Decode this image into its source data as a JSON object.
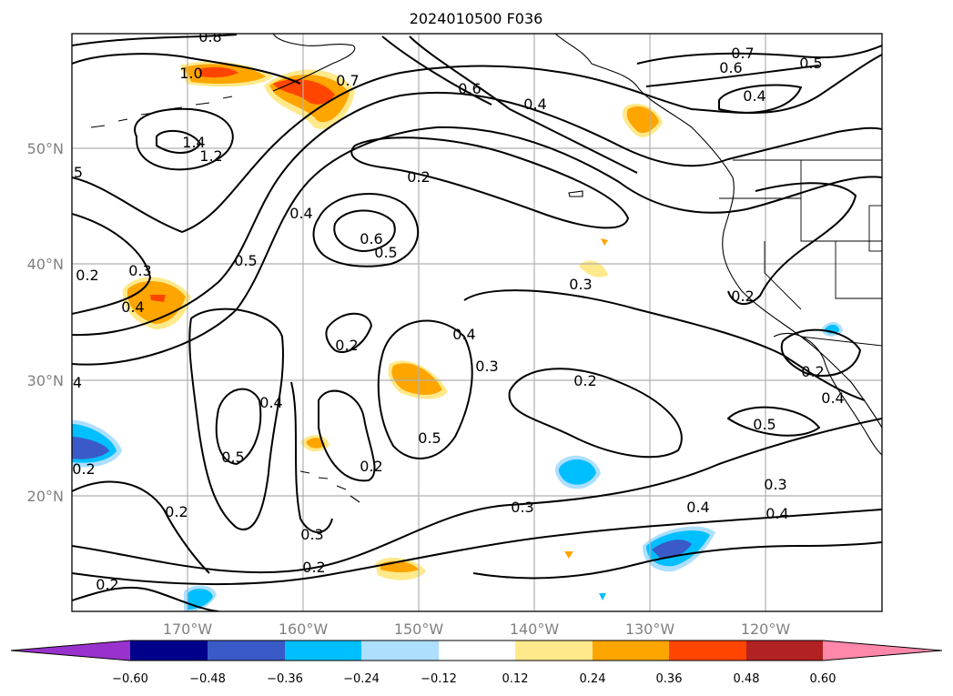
{
  "title": "2024010500 F036",
  "latitude_labels": [
    "50°N",
    "40°N",
    "30°N",
    "20°N"
  ],
  "longitude_labels": [
    "170°W",
    "160°W",
    "150°W",
    "140°W",
    "130°W",
    "120°W"
  ],
  "colorbar": {
    "tick_labels": [
      "−0.60",
      "−0.48",
      "−0.36",
      "−0.24",
      "−0.12",
      "0.12",
      "0.24",
      "0.36",
      "0.48",
      "0.60"
    ],
    "colors": [
      "#9932CC",
      "#00008B",
      "#3A5BC7",
      "#00BFFF",
      "#ADDFFF",
      "#FFFFFF",
      "#FFE98A",
      "#FFA500",
      "#FF4500",
      "#B22222",
      "#FF88AA"
    ]
  },
  "contour_labels": {
    "c08": "0.8",
    "c10": "1.0",
    "c07a": "0.7",
    "c07b": "0.7",
    "c06a": "0.6",
    "c05a": "0.5",
    "c04a": "0.4",
    "c06b": "0.6",
    "c04b": "0.4",
    "c14": "1.4",
    "c12": "1.2",
    "c05b": "5",
    "c02a": "0.2",
    "c04c": "0.4",
    "c05c": "0.5",
    "c06c": "0.6",
    "c05d": "0.5",
    "c02b": "0.2",
    "c03a": "0.3",
    "c04d": "0.4",
    "c03b": "0.3",
    "c02c": "0.2",
    "c04e": "0.4",
    "c03c": "0.3",
    "c02d": "0.2",
    "c04f": "4",
    "c04g": "0.4",
    "c05e": "0.5",
    "c02e": "0.2",
    "c02f": "0.2",
    "c05f": "0.5",
    "c02g": "0.2",
    "c03d": "0.3",
    "c03e": "0.3",
    "c04h": "0.4",
    "c02h": "0.2",
    "c02i": "0.2",
    "c02j": "0.2",
    "c02k": "0.2",
    "c04i": "0.4",
    "c05g": "0.5",
    "c03f": "0.3",
    "c04j": "0.4"
  }
}
